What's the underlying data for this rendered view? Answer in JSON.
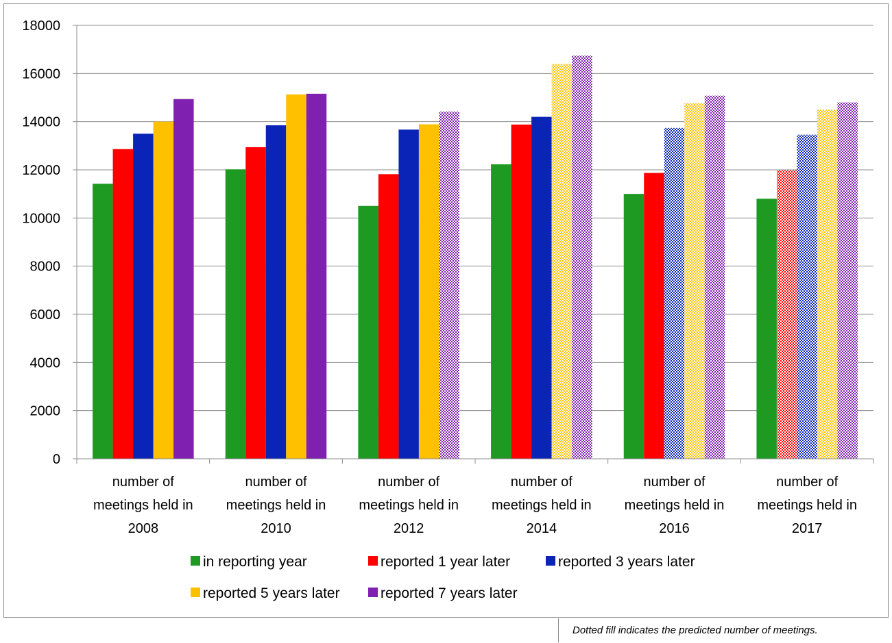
{
  "chart_data": {
    "type": "bar",
    "title": "",
    "xlabel": "",
    "ylabel": "",
    "ylim": [
      0,
      18000
    ],
    "yticks": [
      0,
      2000,
      4000,
      6000,
      8000,
      10000,
      12000,
      14000,
      16000,
      18000
    ],
    "grid": true,
    "legend_position": "bottom",
    "categories": [
      [
        "number of",
        "meetings held in",
        "2008"
      ],
      [
        "number of",
        "meetings held in",
        "2010"
      ],
      [
        "number of",
        "meetings held in",
        "2012"
      ],
      [
        "number of",
        "meetings held in",
        "2014"
      ],
      [
        "number of",
        "meetings held in",
        "2016"
      ],
      [
        "number of",
        "meetings held in",
        "2017"
      ]
    ],
    "series": [
      {
        "name": "in reporting year",
        "color": "#1e9a22",
        "values": [
          11420,
          12020,
          10500,
          12230,
          11000,
          10800
        ],
        "predicted": [
          false,
          false,
          false,
          false,
          false,
          false
        ]
      },
      {
        "name": "reported 1 year later",
        "color": "#ff0000",
        "values": [
          12860,
          12940,
          11820,
          13880,
          11870,
          11980
        ],
        "predicted": [
          false,
          false,
          false,
          false,
          false,
          true
        ]
      },
      {
        "name": "reported 3 years later",
        "color": "#0a24b8",
        "values": [
          13500,
          13850,
          13670,
          14200,
          13740,
          13460
        ],
        "predicted": [
          false,
          false,
          false,
          false,
          true,
          true
        ]
      },
      {
        "name": "reported 5 years later",
        "color": "#ffc000",
        "values": [
          14000,
          15130,
          13890,
          16400,
          14770,
          14500
        ],
        "predicted": [
          false,
          false,
          false,
          true,
          true,
          true
        ]
      },
      {
        "name": "reported 7 years later",
        "color": "#8020b0",
        "values": [
          14940,
          15160,
          14420,
          16740,
          15080,
          14800
        ],
        "predicted": [
          false,
          false,
          true,
          true,
          true,
          true
        ]
      }
    ]
  },
  "footnote": "Dotted fill indicates the predicted number of meetings."
}
